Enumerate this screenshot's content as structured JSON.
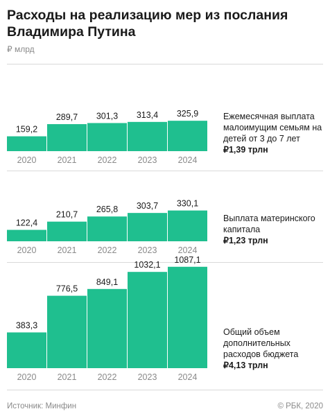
{
  "header": {
    "title": "Расходы на реализацию мер из послания Владимира Путина",
    "unit": "₽ млрд"
  },
  "years": [
    "2020",
    "2021",
    "2022",
    "2023",
    "2024"
  ],
  "chart_data": [
    {
      "type": "bar",
      "categories": [
        "2020",
        "2021",
        "2022",
        "2023",
        "2024"
      ],
      "values": [
        159.2,
        289.7,
        301.3,
        313.4,
        325.9
      ],
      "value_labels": [
        "159,2",
        "289,7",
        "301,3",
        "313,4",
        "325,9"
      ],
      "description": "Ежемесячная выплата малоимущим семьям на детей от 3 до 7 лет",
      "total": "₽1,39 трлн",
      "ylim": [
        0,
        1100
      ]
    },
    {
      "type": "bar",
      "categories": [
        "2020",
        "2021",
        "2022",
        "2023",
        "2024"
      ],
      "values": [
        122.4,
        210.7,
        265.8,
        303.7,
        330.1
      ],
      "value_labels": [
        "122,4",
        "210,7",
        "265,8",
        "303,7",
        "330,1"
      ],
      "description": "Выплата материнского капитала",
      "total": "₽1,23 трлн",
      "ylim": [
        0,
        1100
      ]
    },
    {
      "type": "bar",
      "categories": [
        "2020",
        "2021",
        "2022",
        "2023",
        "2024"
      ],
      "values": [
        383.3,
        776.5,
        849.1,
        1032.1,
        1087.1
      ],
      "value_labels": [
        "383,3",
        "776,5",
        "849,1",
        "1032,1",
        "1087,1"
      ],
      "description": "Общий объем дополнительных расходов бюджета",
      "total": "₽4,13 трлн",
      "ylim": [
        0,
        1100
      ]
    }
  ],
  "footer": {
    "source": "Источник: Минфин",
    "copyright": "© РБК, 2020"
  }
}
